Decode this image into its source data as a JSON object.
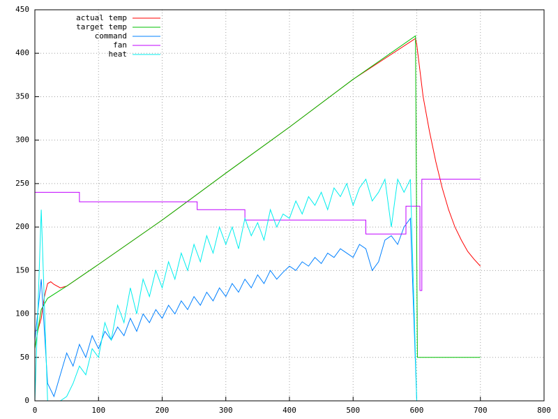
{
  "chart_data": {
    "type": "line",
    "xlim": [
      0,
      800
    ],
    "ylim": [
      0,
      450
    ],
    "xticks": [
      0,
      100,
      200,
      300,
      400,
      500,
      600,
      700,
      800
    ],
    "yticks": [
      0,
      50,
      100,
      150,
      200,
      250,
      300,
      350,
      400,
      450
    ],
    "grid": true,
    "legend": "top-left",
    "series": [
      {
        "name": "actual temp",
        "color": "#ff0000",
        "x": [
          0,
          5,
          10,
          15,
          20,
          25,
          30,
          40,
          50,
          100,
          200,
          300,
          400,
          500,
          598,
          600,
          605,
          610,
          620,
          630,
          640,
          650,
          660,
          670,
          680,
          690,
          700
        ],
        "values": [
          80,
          82,
          95,
          120,
          135,
          137,
          134,
          130,
          132,
          157,
          208,
          262,
          315,
          370,
          417,
          410,
          380,
          350,
          310,
          275,
          245,
          220,
          200,
          185,
          172,
          163,
          155
        ]
      },
      {
        "name": "target temp",
        "color": "#00c000",
        "x": [
          0,
          10,
          20,
          50,
          100,
          200,
          300,
          400,
          500,
          598,
          601,
          700
        ],
        "values": [
          60,
          105,
          118,
          132,
          157,
          208,
          262,
          315,
          370,
          420,
          50,
          50
        ]
      },
      {
        "name": "command",
        "color": "#0080ff",
        "x": [
          0,
          10,
          20,
          30,
          40,
          50,
          60,
          70,
          80,
          90,
          100,
          110,
          120,
          130,
          140,
          150,
          160,
          170,
          180,
          190,
          200,
          210,
          220,
          230,
          240,
          250,
          260,
          270,
          280,
          290,
          300,
          310,
          320,
          330,
          340,
          350,
          360,
          370,
          380,
          390,
          400,
          410,
          420,
          430,
          440,
          450,
          460,
          470,
          480,
          490,
          500,
          510,
          520,
          530,
          540,
          550,
          560,
          570,
          580,
          590,
          600
        ],
        "values": [
          70,
          140,
          20,
          5,
          30,
          55,
          40,
          65,
          50,
          75,
          60,
          80,
          70,
          85,
          75,
          95,
          80,
          100,
          90,
          105,
          95,
          110,
          100,
          115,
          105,
          120,
          110,
          125,
          115,
          130,
          120,
          135,
          125,
          140,
          130,
          145,
          135,
          150,
          140,
          148,
          155,
          150,
          160,
          155,
          165,
          158,
          170,
          165,
          175,
          170,
          165,
          180,
          175,
          150,
          160,
          185,
          190,
          180,
          200,
          210,
          0
        ]
      },
      {
        "name": "fan",
        "color": "#c000ff",
        "x": [
          0,
          70,
          70,
          255,
          255,
          330,
          330,
          520,
          520,
          583,
          583,
          605,
          605,
          608,
          608,
          700
        ],
        "values": [
          240,
          240,
          229,
          229,
          220,
          220,
          208,
          208,
          192,
          192,
          224,
          224,
          127,
          127,
          255,
          255
        ]
      },
      {
        "name": "heat",
        "color": "#00eeee",
        "x": [
          0,
          10,
          20,
          30,
          40,
          50,
          60,
          70,
          80,
          90,
          100,
          110,
          120,
          130,
          140,
          150,
          160,
          170,
          180,
          190,
          200,
          210,
          220,
          230,
          240,
          250,
          260,
          270,
          280,
          290,
          300,
          310,
          320,
          330,
          340,
          350,
          360,
          370,
          380,
          390,
          400,
          410,
          420,
          430,
          440,
          450,
          460,
          470,
          480,
          490,
          500,
          510,
          520,
          530,
          540,
          550,
          560,
          570,
          580,
          590,
          600
        ],
        "values": [
          0,
          220,
          0,
          0,
          0,
          5,
          20,
          40,
          30,
          60,
          50,
          90,
          70,
          110,
          90,
          130,
          100,
          140,
          120,
          150,
          130,
          160,
          140,
          170,
          150,
          180,
          160,
          190,
          170,
          200,
          180,
          200,
          175,
          210,
          190,
          205,
          185,
          220,
          200,
          215,
          210,
          230,
          215,
          235,
          225,
          240,
          220,
          245,
          235,
          250,
          225,
          245,
          255,
          230,
          240,
          255,
          200,
          255,
          240,
          255,
          0
        ]
      }
    ]
  }
}
